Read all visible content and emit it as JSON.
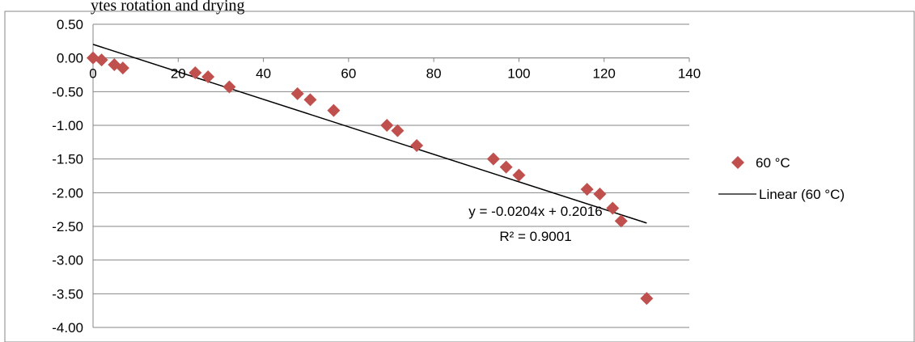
{
  "top_text_fragment": "ytes rotation and drying",
  "chart_data": {
    "type": "scatter",
    "title": "",
    "xlabel": "",
    "ylabel": "",
    "xlim": [
      0,
      140
    ],
    "ylim": [
      -4.0,
      0.5
    ],
    "x_ticks": [
      "0",
      "20",
      "40",
      "60",
      "80",
      "100",
      "120",
      "140"
    ],
    "y_ticks": [
      "0.50",
      "0.00",
      "-0.50",
      "-1.00",
      "-1.50",
      "-2.00",
      "-2.50",
      "-3.00",
      "-3.50",
      "-4.00"
    ],
    "grid": "horizontal",
    "legend_position": "right",
    "series": [
      {
        "name": "60 °C",
        "marker": "diamond",
        "color": "#C0504D",
        "points": [
          [
            0,
            0.0
          ],
          [
            2,
            -0.03
          ],
          [
            5,
            -0.1
          ],
          [
            7,
            -0.15
          ],
          [
            24,
            -0.22
          ],
          [
            27,
            -0.28
          ],
          [
            32,
            -0.43
          ],
          [
            48,
            -0.53
          ],
          [
            51,
            -0.62
          ],
          [
            56.5,
            -0.78
          ],
          [
            69,
            -1.0
          ],
          [
            71.5,
            -1.08
          ],
          [
            76,
            -1.3
          ],
          [
            94,
            -1.5
          ],
          [
            97,
            -1.62
          ],
          [
            100,
            -1.74
          ],
          [
            116,
            -1.95
          ],
          [
            119,
            -2.02
          ],
          [
            122,
            -2.23
          ],
          [
            124,
            -2.42
          ],
          [
            130,
            -3.57
          ]
        ]
      }
    ],
    "trendline": {
      "name": "Linear (60 °C)",
      "color": "#000000",
      "slope": -0.0204,
      "intercept": 0.2016,
      "x_range": [
        0,
        130
      ],
      "equation": "y = -0.0204x + 0.2016",
      "r_squared": "R² = 0.9001"
    }
  }
}
